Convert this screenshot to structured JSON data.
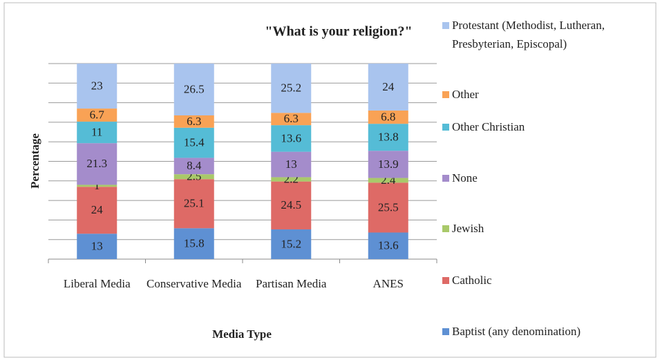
{
  "chart_data": {
    "type": "stacked_bar",
    "title": "\"What is your religion?\"",
    "x_label": "Media Type",
    "y_label": "Percentage",
    "categories": [
      "Liberal Media",
      "Conservative Media",
      "Partisan Media",
      "ANES"
    ],
    "ylim": [
      0,
      100
    ],
    "yticks": [
      0,
      10,
      20,
      30,
      40,
      50,
      60,
      70,
      80,
      90,
      100
    ],
    "grid": true,
    "legend": "right",
    "series": [
      {
        "name": "Baptist (any denomination)",
        "color": "#5e90d3",
        "values": [
          13,
          15.8,
          15.2,
          13.6
        ]
      },
      {
        "name": "Catholic",
        "color": "#de6a66",
        "values": [
          24,
          25.1,
          24.5,
          25.5
        ]
      },
      {
        "name": "Jewish",
        "color": "#a9c96a",
        "values": [
          1,
          2.5,
          2.2,
          2.4
        ]
      },
      {
        "name": "None",
        "color": "#a48ccb",
        "values": [
          21.3,
          8.4,
          13,
          13.9
        ]
      },
      {
        "name": "Other Christian",
        "color": "#55bcd6",
        "values": [
          11,
          15.4,
          13.6,
          13.8
        ]
      },
      {
        "name": "Other",
        "color": "#f9a255",
        "values": [
          6.7,
          6.3,
          6.3,
          6.8
        ]
      },
      {
        "name": "Protestant (Methodist, Lutheran, Presbyterian, Episcopal)",
        "color": "#a9c4ee",
        "values": [
          23,
          26.5,
          25.2,
          24
        ]
      }
    ]
  }
}
